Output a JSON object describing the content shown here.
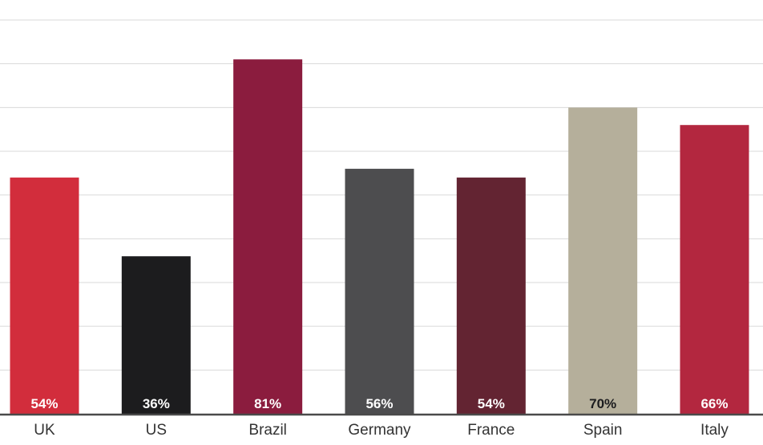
{
  "chart_data": {
    "type": "bar",
    "categories": [
      "UK",
      "US",
      "Brazil",
      "Germany",
      "France",
      "Spain",
      "Italy"
    ],
    "values": [
      54,
      36,
      81,
      56,
      54,
      70,
      66
    ],
    "value_labels": [
      "54%",
      "36%",
      "81%",
      "56%",
      "54%",
      "70%",
      "66%"
    ],
    "colors": [
      "#d22d3c",
      "#1c1c1e",
      "#8b1c3e",
      "#4d4d4f",
      "#632432",
      "#b5af9b",
      "#b3273f"
    ],
    "label_colors": [
      "#ffffff",
      "#ffffff",
      "#ffffff",
      "#ffffff",
      "#ffffff",
      "#1c1c1e",
      "#ffffff"
    ],
    "title": "",
    "xlabel": "",
    "ylabel": "",
    "ylim": [
      0,
      90
    ],
    "grid": true,
    "legend": "none"
  }
}
